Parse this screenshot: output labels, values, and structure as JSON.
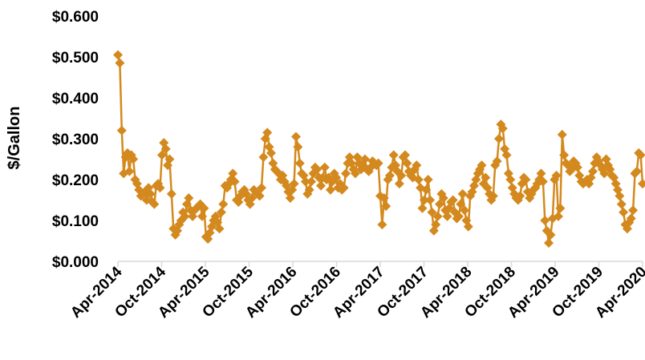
{
  "chart_data": {
    "type": "line",
    "title": "",
    "xlabel": "",
    "ylabel": "$/Gallon",
    "ylim": [
      0,
      0.6
    ],
    "yticks": [
      "$0.000",
      "$0.100",
      "$0.200",
      "$0.300",
      "$0.400",
      "$0.500",
      "$0.600"
    ],
    "xticks": [
      "Apr-2014",
      "Oct-2014",
      "Apr-2015",
      "Oct-2015",
      "Apr-2016",
      "Oct-2016",
      "Apr-2017",
      "Oct-2017",
      "Apr-2018",
      "Oct-2018",
      "Apr-2019",
      "Oct-2019",
      "Apr-2020"
    ],
    "grid": false,
    "legend": "none",
    "marker": "diamond",
    "color": "#D4891E",
    "series": [
      {
        "x_start": "2014-04",
        "interval": "weekly",
        "values": [
          0.505,
          0.485,
          0.32,
          0.215,
          0.255,
          0.265,
          0.22,
          0.26,
          0.25,
          0.2,
          0.19,
          0.175,
          0.16,
          0.165,
          0.17,
          0.15,
          0.18,
          0.165,
          0.145,
          0.14,
          0.185,
          0.19,
          0.18,
          0.26,
          0.29,
          0.275,
          0.235,
          0.25,
          0.165,
          0.08,
          0.065,
          0.075,
          0.09,
          0.1,
          0.12,
          0.11,
          0.14,
          0.155,
          0.125,
          0.11,
          0.125,
          0.13,
          0.135,
          0.14,
          0.11,
          0.13,
          0.06,
          0.055,
          0.07,
          0.085,
          0.1,
          0.11,
          0.095,
          0.08,
          0.12,
          0.14,
          0.185,
          0.18,
          0.19,
          0.2,
          0.215,
          0.195,
          0.15,
          0.145,
          0.16,
          0.17,
          0.175,
          0.165,
          0.15,
          0.14,
          0.155,
          0.175,
          0.17,
          0.165,
          0.16,
          0.18,
          0.255,
          0.3,
          0.315,
          0.28,
          0.265,
          0.24,
          0.225,
          0.22,
          0.215,
          0.2,
          0.21,
          0.195,
          0.185,
          0.17,
          0.155,
          0.175,
          0.19,
          0.305,
          0.28,
          0.24,
          0.215,
          0.21,
          0.195,
          0.165,
          0.175,
          0.195,
          0.215,
          0.23,
          0.225,
          0.205,
          0.185,
          0.205,
          0.23,
          0.2,
          0.205,
          0.175,
          0.195,
          0.215,
          0.205,
          0.18,
          0.19,
          0.175,
          0.18,
          0.215,
          0.24,
          0.255,
          0.24,
          0.225,
          0.215,
          0.255,
          0.24,
          0.225,
          0.235,
          0.25,
          0.225,
          0.22,
          0.23,
          0.245,
          0.24,
          0.235,
          0.24,
          0.16,
          0.09,
          0.155,
          0.135,
          0.2,
          0.21,
          0.23,
          0.26,
          0.235,
          0.22,
          0.19,
          0.21,
          0.255,
          0.26,
          0.24,
          0.22,
          0.21,
          0.205,
          0.225,
          0.235,
          0.2,
          0.18,
          0.13,
          0.15,
          0.175,
          0.2,
          0.15,
          0.12,
          0.075,
          0.09,
          0.11,
          0.14,
          0.165,
          0.155,
          0.125,
          0.11,
          0.13,
          0.145,
          0.15,
          0.12,
          0.105,
          0.11,
          0.14,
          0.165,
          0.125,
          0.1,
          0.085,
          0.16,
          0.17,
          0.185,
          0.2,
          0.215,
          0.225,
          0.235,
          0.19,
          0.205,
          0.18,
          0.165,
          0.15,
          0.16,
          0.235,
          0.245,
          0.3,
          0.335,
          0.325,
          0.275,
          0.26,
          0.215,
          0.2,
          0.18,
          0.165,
          0.155,
          0.15,
          0.16,
          0.19,
          0.205,
          0.2,
          0.17,
          0.155,
          0.165,
          0.175,
          0.18,
          0.19,
          0.2,
          0.215,
          0.195,
          0.1,
          0.075,
          0.045,
          0.065,
          0.105,
          0.2,
          0.21,
          0.11,
          0.13,
          0.31,
          0.26,
          0.24,
          0.235,
          0.22,
          0.225,
          0.245,
          0.24,
          0.23,
          0.21,
          0.195,
          0.19,
          0.195,
          0.2,
          0.19,
          0.205,
          0.22,
          0.24,
          0.255,
          0.245,
          0.235,
          0.225,
          0.215,
          0.25,
          0.235,
          0.225,
          0.21,
          0.205,
          0.19,
          0.175,
          0.16,
          0.14,
          0.12,
          0.09,
          0.08,
          0.095,
          0.105,
          0.125,
          0.215,
          0.22,
          0.265,
          0.26,
          0.19
        ]
      }
    ]
  }
}
